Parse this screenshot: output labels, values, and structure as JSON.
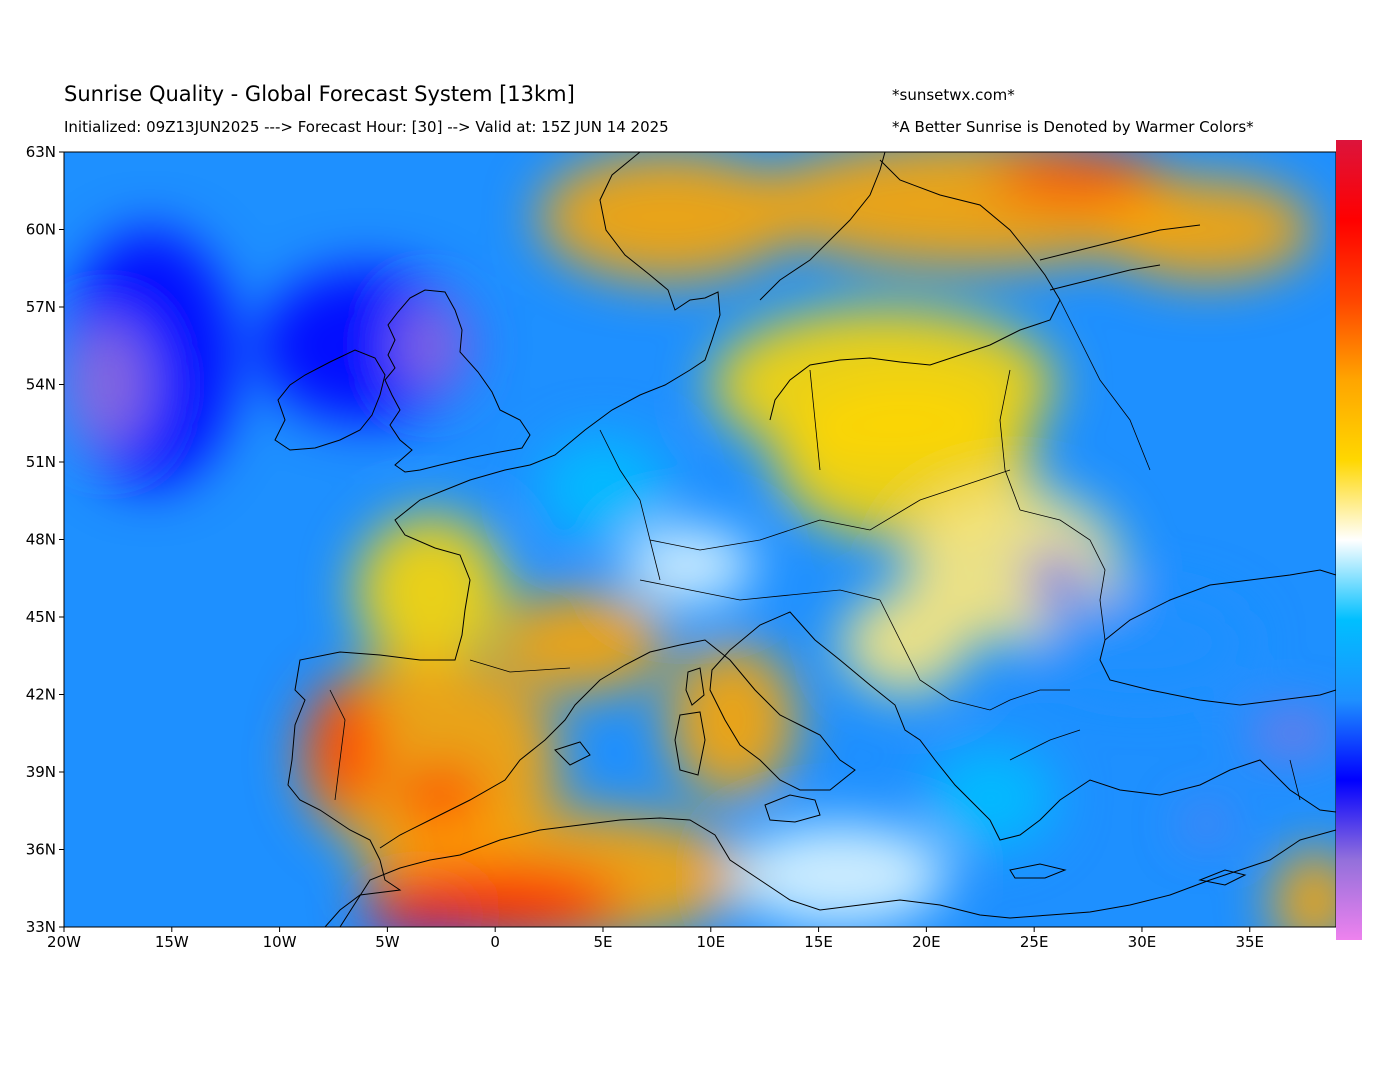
{
  "header": {
    "title": "Sunrise Quality - Global Forecast System [13km]",
    "subtitle": "Initialized: 09Z13JUN2025 ---> Forecast Hour: [30] --> Valid at: 15Z JUN 14 2025",
    "site": "*sunsetwx.com*",
    "note": "*A Better Sunrise is Denoted by Warmer Colors*"
  },
  "map": {
    "projection": "equirectangular",
    "lon_range": [
      -20,
      39
    ],
    "lat_range": [
      33,
      63
    ],
    "lon_ticks": [
      {
        "value": -20,
        "label": "20W"
      },
      {
        "value": -15,
        "label": "15W"
      },
      {
        "value": -10,
        "label": "10W"
      },
      {
        "value": -5,
        "label": "5W"
      },
      {
        "value": 0,
        "label": "0"
      },
      {
        "value": 5,
        "label": "5E"
      },
      {
        "value": 10,
        "label": "10E"
      },
      {
        "value": 15,
        "label": "15E"
      },
      {
        "value": 20,
        "label": "20E"
      },
      {
        "value": 25,
        "label": "25E"
      },
      {
        "value": 30,
        "label": "30E"
      },
      {
        "value": 35,
        "label": "35E"
      }
    ],
    "lat_ticks": [
      {
        "value": 63,
        "label": "63N"
      },
      {
        "value": 60,
        "label": "60N"
      },
      {
        "value": 57,
        "label": "57N"
      },
      {
        "value": 54,
        "label": "54N"
      },
      {
        "value": 51,
        "label": "51N"
      },
      {
        "value": 48,
        "label": "48N"
      },
      {
        "value": 45,
        "label": "45N"
      },
      {
        "value": 42,
        "label": "42N"
      },
      {
        "value": 39,
        "label": "39N"
      },
      {
        "value": 36,
        "label": "36N"
      },
      {
        "value": 33,
        "label": "33N"
      }
    ],
    "background_color": "#1e90ff",
    "colorbar_stops": [
      "#ee82ee",
      "#9370db",
      "#0000ff",
      "#1e90ff",
      "#00bfff",
      "#ffffff",
      "#ffd700",
      "#ffa500",
      "#ff4500",
      "#ff0000",
      "#dc143c"
    ],
    "regions": [
      {
        "name": "north-atlantic-deep-blue",
        "lon": -16,
        "lat": 55,
        "rx": 4,
        "ry": 5,
        "color": "#0000ff"
      },
      {
        "name": "west-atlantic-violet",
        "lon": -18,
        "lat": 54,
        "rx": 2,
        "ry": 2.5,
        "color": "#9370db"
      },
      {
        "name": "ireland-scotland-blue",
        "lon": -6,
        "lat": 55.5,
        "rx": 5,
        "ry": 3,
        "color": "#0000ff"
      },
      {
        "name": "scotland-violet",
        "lon": -3,
        "lat": 55.5,
        "rx": 1.6,
        "ry": 1.8,
        "color": "#9370db"
      },
      {
        "name": "norway-orange",
        "lon": 8,
        "lat": 60.5,
        "rx": 6,
        "ry": 2.5,
        "color": "#ffa500"
      },
      {
        "name": "sweden-finland-orange",
        "lon": 22,
        "lat": 61,
        "rx": 10,
        "ry": 2.5,
        "color": "#ffa500"
      },
      {
        "name": "finland-red",
        "lon": 27,
        "lat": 62,
        "rx": 4,
        "ry": 1,
        "color": "#ff4500"
      },
      {
        "name": "russia-north-orange",
        "lon": 33,
        "lat": 60,
        "rx": 5,
        "ry": 2,
        "color": "#ffa500"
      },
      {
        "name": "baltic-yellow",
        "lon": 18,
        "lat": 54,
        "rx": 8,
        "ry": 3,
        "color": "#ffd700"
      },
      {
        "name": "poland-yellow",
        "lon": 19,
        "lat": 51,
        "rx": 6,
        "ry": 3,
        "color": "#ffd700"
      },
      {
        "name": "east-europe-light",
        "lon": 24,
        "lat": 47,
        "rx": 5,
        "ry": 3,
        "color": "#ffe97a"
      },
      {
        "name": "atlantic-yellow-band",
        "lon": -3,
        "lat": 46,
        "rx": 3.5,
        "ry": 3,
        "color": "#ffd700"
      },
      {
        "name": "iberia-orange",
        "lon": -3,
        "lat": 39.5,
        "rx": 6,
        "ry": 4,
        "color": "#ffa500"
      },
      {
        "name": "portugal-red",
        "lon": -7,
        "lat": 40,
        "rx": 1.8,
        "ry": 2.5,
        "color": "#ff4500"
      },
      {
        "name": "spain-east-red",
        "lon": -2.5,
        "lat": 38,
        "rx": 2,
        "ry": 1.3,
        "color": "#ff4500"
      },
      {
        "name": "france-south-orange",
        "lon": 4,
        "lat": 44,
        "rx": 4,
        "ry": 2,
        "color": "#ffa500"
      },
      {
        "name": "italy-orange",
        "lon": 11,
        "lat": 41,
        "rx": 3,
        "ry": 3,
        "color": "#ffa500"
      },
      {
        "name": "north-africa-orange",
        "lon": 3,
        "lat": 35,
        "rx": 9,
        "ry": 2.5,
        "color": "#ffa500"
      },
      {
        "name": "algeria-red",
        "lon": 0,
        "lat": 34,
        "rx": 6,
        "ry": 1.4,
        "color": "#ff2000"
      },
      {
        "name": "morocco-crimson",
        "lon": -3.5,
        "lat": 33.5,
        "rx": 2.5,
        "ry": 1,
        "color": "#dc143c"
      },
      {
        "name": "balkans-yellow",
        "lon": 19,
        "lat": 44,
        "rx": 3,
        "ry": 2,
        "color": "#ffe97a"
      },
      {
        "name": "greece-light-blue",
        "lon": 23,
        "lat": 38,
        "rx": 3,
        "ry": 2,
        "color": "#00bfff"
      },
      {
        "name": "black-sea-blue",
        "lon": 30,
        "lat": 44,
        "rx": 5,
        "ry": 2,
        "color": "#1e90ff"
      },
      {
        "name": "romania-blue",
        "lon": 26,
        "lat": 46.5,
        "rx": 1.2,
        "ry": 1,
        "color": "#0000ff"
      },
      {
        "name": "turkey-east-violet",
        "lon": 37,
        "lat": 40.5,
        "rx": 2,
        "ry": 0.8,
        "color": "#9370db"
      },
      {
        "name": "turkey-south-violet",
        "lon": 33,
        "lat": 37,
        "rx": 1,
        "ry": 0.5,
        "color": "#9370db"
      },
      {
        "name": "central-med-white",
        "lon": 16,
        "lat": 35,
        "rx": 5,
        "ry": 2,
        "color": "#e0f7ff"
      },
      {
        "name": "alps-white",
        "lon": 9,
        "lat": 47,
        "rx": 3,
        "ry": 1.5,
        "color": "#e0f7ff"
      },
      {
        "name": "west-europe-light-blue",
        "lon": 5,
        "lat": 50,
        "rx": 3,
        "ry": 2,
        "color": "#00bfff"
      },
      {
        "name": "levant-orange",
        "lon": 38,
        "lat": 34,
        "rx": 2,
        "ry": 2,
        "color": "#ffa500"
      }
    ]
  }
}
